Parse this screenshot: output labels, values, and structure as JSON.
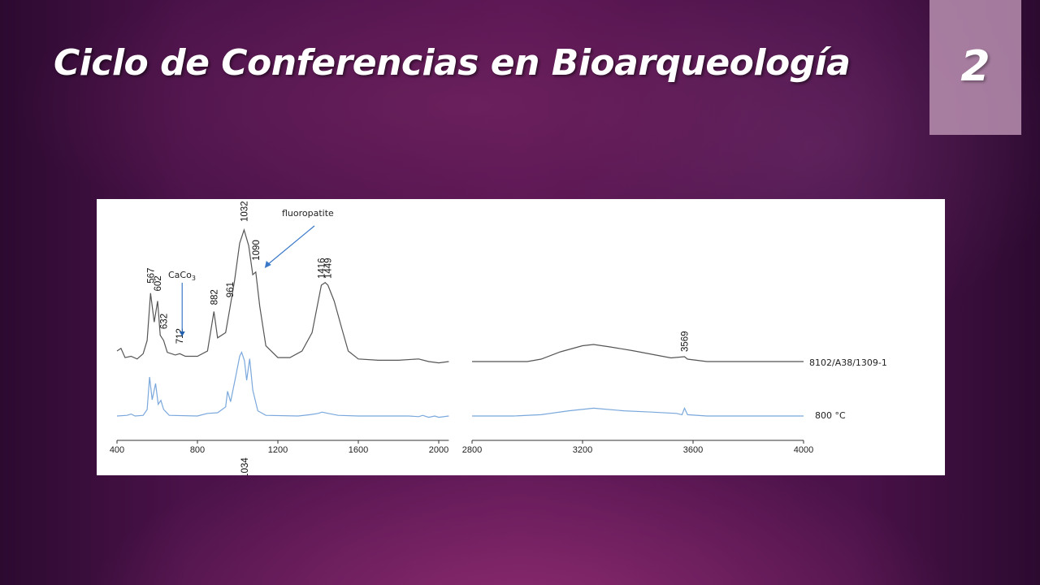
{
  "slide": {
    "title": "Ciclo de Conferencias en Bioarqueología",
    "number": "2"
  },
  "colors": {
    "sample_series": "#555555",
    "reference_series": "#7aa8dc",
    "annotation_arrow": "#3a78c8"
  },
  "chart_data": {
    "type": "line",
    "title": "",
    "xlabel": "",
    "ylabel": "",
    "panels": [
      {
        "xlim": [
          400,
          2050
        ],
        "x_ticks": [
          "400",
          "800",
          "1200",
          "1600",
          "2000"
        ],
        "x_tick_values": [
          400,
          800,
          1200,
          1600,
          2000
        ]
      },
      {
        "xlim": [
          2800,
          4000
        ],
        "x_ticks": [
          "2800",
          "3200",
          "3600",
          "4000"
        ],
        "x_tick_values": [
          2800,
          3200,
          3600,
          4000
        ]
      }
    ],
    "series": [
      {
        "name": "8102/A38/1309-1",
        "color": "#555555",
        "panel1_points": [
          [
            400,
            0.08
          ],
          [
            420,
            0.1
          ],
          [
            440,
            0.03
          ],
          [
            470,
            0.04
          ],
          [
            500,
            0.02
          ],
          [
            530,
            0.06
          ],
          [
            550,
            0.16
          ],
          [
            567,
            0.52
          ],
          [
            585,
            0.3
          ],
          [
            602,
            0.46
          ],
          [
            615,
            0.2
          ],
          [
            632,
            0.16
          ],
          [
            650,
            0.07
          ],
          [
            690,
            0.05
          ],
          [
            712,
            0.06
          ],
          [
            740,
            0.04
          ],
          [
            800,
            0.04
          ],
          [
            850,
            0.08
          ],
          [
            882,
            0.38
          ],
          [
            900,
            0.18
          ],
          [
            940,
            0.22
          ],
          [
            961,
            0.4
          ],
          [
            985,
            0.62
          ],
          [
            1010,
            0.9
          ],
          [
            1032,
            1.0
          ],
          [
            1055,
            0.88
          ],
          [
            1075,
            0.66
          ],
          [
            1090,
            0.68
          ],
          [
            1110,
            0.42
          ],
          [
            1140,
            0.12
          ],
          [
            1200,
            0.03
          ],
          [
            1260,
            0.03
          ],
          [
            1320,
            0.08
          ],
          [
            1370,
            0.22
          ],
          [
            1416,
            0.58
          ],
          [
            1435,
            0.6
          ],
          [
            1449,
            0.58
          ],
          [
            1480,
            0.46
          ],
          [
            1520,
            0.24
          ],
          [
            1550,
            0.08
          ],
          [
            1600,
            0.02
          ],
          [
            1700,
            0.01
          ],
          [
            1800,
            0.01
          ],
          [
            1900,
            0.02
          ],
          [
            1950,
            0.0
          ],
          [
            2000,
            -0.01
          ],
          [
            2050,
            0.0
          ]
        ],
        "panel2_points": [
          [
            2800,
            0.0
          ],
          [
            2900,
            0.0
          ],
          [
            3000,
            0.0
          ],
          [
            3050,
            0.02
          ],
          [
            3120,
            0.08
          ],
          [
            3200,
            0.13
          ],
          [
            3240,
            0.14
          ],
          [
            3300,
            0.12
          ],
          [
            3380,
            0.09
          ],
          [
            3450,
            0.06
          ],
          [
            3520,
            0.03
          ],
          [
            3569,
            0.04
          ],
          [
            3580,
            0.02
          ],
          [
            3650,
            0.0
          ],
          [
            3800,
            0.0
          ],
          [
            4000,
            0.0
          ]
        ],
        "label": "8102/A38/1309-1"
      },
      {
        "name": "800 °C",
        "color": "#7aa8dc",
        "panel1_points": [
          [
            400,
            0.0
          ],
          [
            450,
            0.01
          ],
          [
            470,
            0.03
          ],
          [
            490,
            0.0
          ],
          [
            530,
            0.01
          ],
          [
            550,
            0.1
          ],
          [
            562,
            0.6
          ],
          [
            575,
            0.25
          ],
          [
            592,
            0.5
          ],
          [
            605,
            0.18
          ],
          [
            618,
            0.24
          ],
          [
            632,
            0.1
          ],
          [
            660,
            0.01
          ],
          [
            800,
            0.0
          ],
          [
            850,
            0.04
          ],
          [
            900,
            0.05
          ],
          [
            940,
            0.14
          ],
          [
            950,
            0.38
          ],
          [
            965,
            0.22
          ],
          [
            990,
            0.6
          ],
          [
            1010,
            0.92
          ],
          [
            1020,
            0.98
          ],
          [
            1034,
            0.85
          ],
          [
            1045,
            0.55
          ],
          [
            1060,
            0.88
          ],
          [
            1075,
            0.4
          ],
          [
            1100,
            0.08
          ],
          [
            1140,
            0.01
          ],
          [
            1300,
            0.0
          ],
          [
            1360,
            0.02
          ],
          [
            1400,
            0.04
          ],
          [
            1420,
            0.06
          ],
          [
            1450,
            0.04
          ],
          [
            1500,
            0.01
          ],
          [
            1600,
            0.0
          ],
          [
            1850,
            0.0
          ],
          [
            1900,
            -0.01
          ],
          [
            1920,
            0.01
          ],
          [
            1950,
            -0.02
          ],
          [
            1980,
            0.0
          ],
          [
            2000,
            -0.02
          ],
          [
            2050,
            0.0
          ]
        ],
        "panel2_points": [
          [
            2800,
            0.0
          ],
          [
            2950,
            0.0
          ],
          [
            3050,
            0.01
          ],
          [
            3150,
            0.04
          ],
          [
            3240,
            0.06
          ],
          [
            3350,
            0.04
          ],
          [
            3450,
            0.03
          ],
          [
            3540,
            0.02
          ],
          [
            3560,
            0.01
          ],
          [
            3569,
            0.06
          ],
          [
            3580,
            0.01
          ],
          [
            3650,
            0.0
          ],
          [
            4000,
            0.0
          ]
        ],
        "label": "800 °C"
      }
    ],
    "peak_labels_top": [
      "567",
      "602",
      "632",
      "712",
      "882",
      "961",
      "1032",
      "1090",
      "1416",
      "1449",
      "3569"
    ],
    "peak_labels_bottom": [
      "1034"
    ],
    "annotations": [
      {
        "text": "fluoropatite",
        "points_to": "1090"
      },
      {
        "text": "CaCo",
        "subscript": "3",
        "points_to": "712"
      }
    ],
    "grid": false,
    "legend": "series labels at right end of traces"
  }
}
